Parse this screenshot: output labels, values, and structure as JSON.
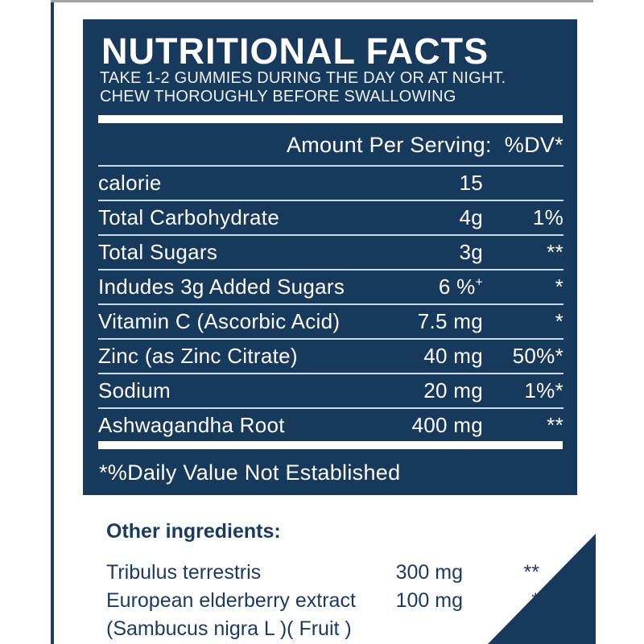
{
  "palette": {
    "panel_navy": "#16395c",
    "navy_text": "#1b3a5d",
    "separator_blue_white": "#c9dcec",
    "frame_gray": "#a3a3a3",
    "white": "#ffffff"
  },
  "label": {
    "title": "NUTRITIONAL FACTS",
    "subtitle_line1": "TAKE 1-2 GUMMIES DURING THE DAY OR AT NIGHT.",
    "subtitle_line2": "CHEW THOROUGHLY BEFORE SWALLOWING",
    "table": {
      "header": {
        "amount": "Amount Per Serving:",
        "dv": "%DV*"
      },
      "rows": [
        {
          "label": "calorie",
          "amount": "15",
          "dv": ""
        },
        {
          "label": "Total Carbohydrate",
          "amount": "4g",
          "dv": "1%"
        },
        {
          "label": "Total Sugars",
          "amount": "3g",
          "dv": "**"
        },
        {
          "label": "Indudes 3g Added Sugars",
          "amount": "6 %",
          "amount_sup": "+",
          "dv": "*"
        },
        {
          "label": "Vitamin C (Ascorbic Acid)",
          "amount": "7.5 mg",
          "dv": "*"
        },
        {
          "label": "Zinc (as Zinc Citrate)",
          "amount": "40 mg",
          "dv": "50%*"
        },
        {
          "label": "Sodium",
          "amount": "20 mg",
          "dv": "1%*"
        },
        {
          "label": "Ashwagandha Root",
          "amount": "400 mg",
          "dv": "**"
        }
      ],
      "footnote": "*%Daily Value Not Established"
    },
    "other_ingredients": {
      "heading": "Other ingredients:",
      "rows": [
        {
          "label": "Tribulus terrestris",
          "amount": "300 mg",
          "dv": "**"
        },
        {
          "label": "European elderberry extract",
          "amount": "100 mg",
          "dv": "*"
        },
        {
          "label": "(Sambucus nigra L )( Fruit )",
          "amount": "",
          "dv": ""
        }
      ]
    }
  }
}
